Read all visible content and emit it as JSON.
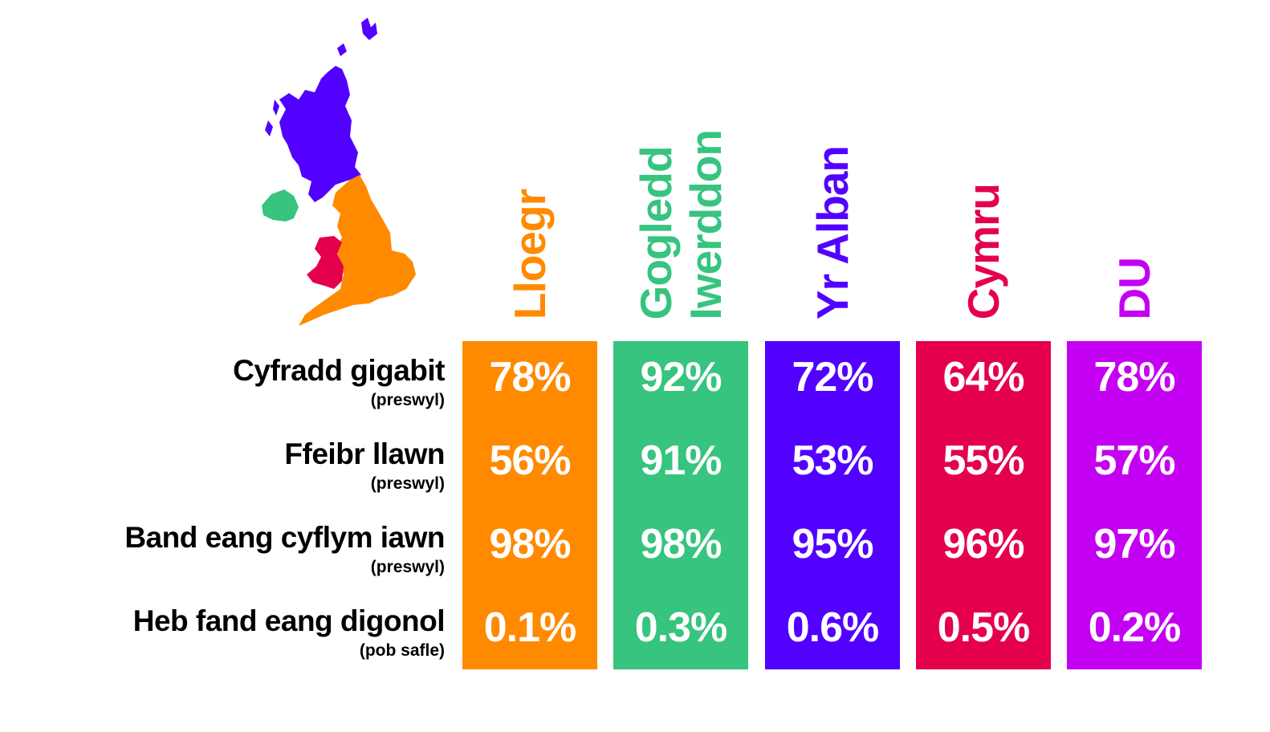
{
  "chart_data": {
    "type": "table",
    "title": "",
    "columns": [
      {
        "name": "Lloegr",
        "lines": [
          "Lloegr"
        ],
        "color": "#ff8a00"
      },
      {
        "name": "Gogledd Iwerddon",
        "lines": [
          "Gogledd",
          "Iwerddon"
        ],
        "color": "#36c47f"
      },
      {
        "name": "Yr Alban",
        "lines": [
          "Yr Alban"
        ],
        "color": "#5200ff"
      },
      {
        "name": "Cymru",
        "lines": [
          "Cymru"
        ],
        "color": "#e4004b"
      },
      {
        "name": "DU",
        "lines": [
          "DU"
        ],
        "color": "#c400f2"
      }
    ],
    "rows": [
      {
        "label": "Cyfradd gigabit",
        "sublabel": "(preswyl)",
        "values": [
          "78%",
          "92%",
          "72%",
          "64%",
          "78%"
        ]
      },
      {
        "label": "Ffeibr llawn",
        "sublabel": "(preswyl)",
        "values": [
          "56%",
          "91%",
          "53%",
          "55%",
          "57%"
        ]
      },
      {
        "label": "Band eang cyflym iawn",
        "sublabel": "(preswyl)",
        "values": [
          "98%",
          "98%",
          "95%",
          "96%",
          "97%"
        ]
      },
      {
        "label": "Heb fand eang digonol",
        "sublabel": "(pob safle)",
        "values": [
          "0.1%",
          "0.3%",
          "0.6%",
          "0.5%",
          "0.2%"
        ]
      }
    ]
  },
  "map": {
    "regions": [
      {
        "name": "scotland",
        "color": "#5200ff"
      },
      {
        "name": "northern-ireland",
        "color": "#36c47f"
      },
      {
        "name": "england",
        "color": "#ff8a00"
      },
      {
        "name": "wales",
        "color": "#e4004b"
      }
    ]
  }
}
